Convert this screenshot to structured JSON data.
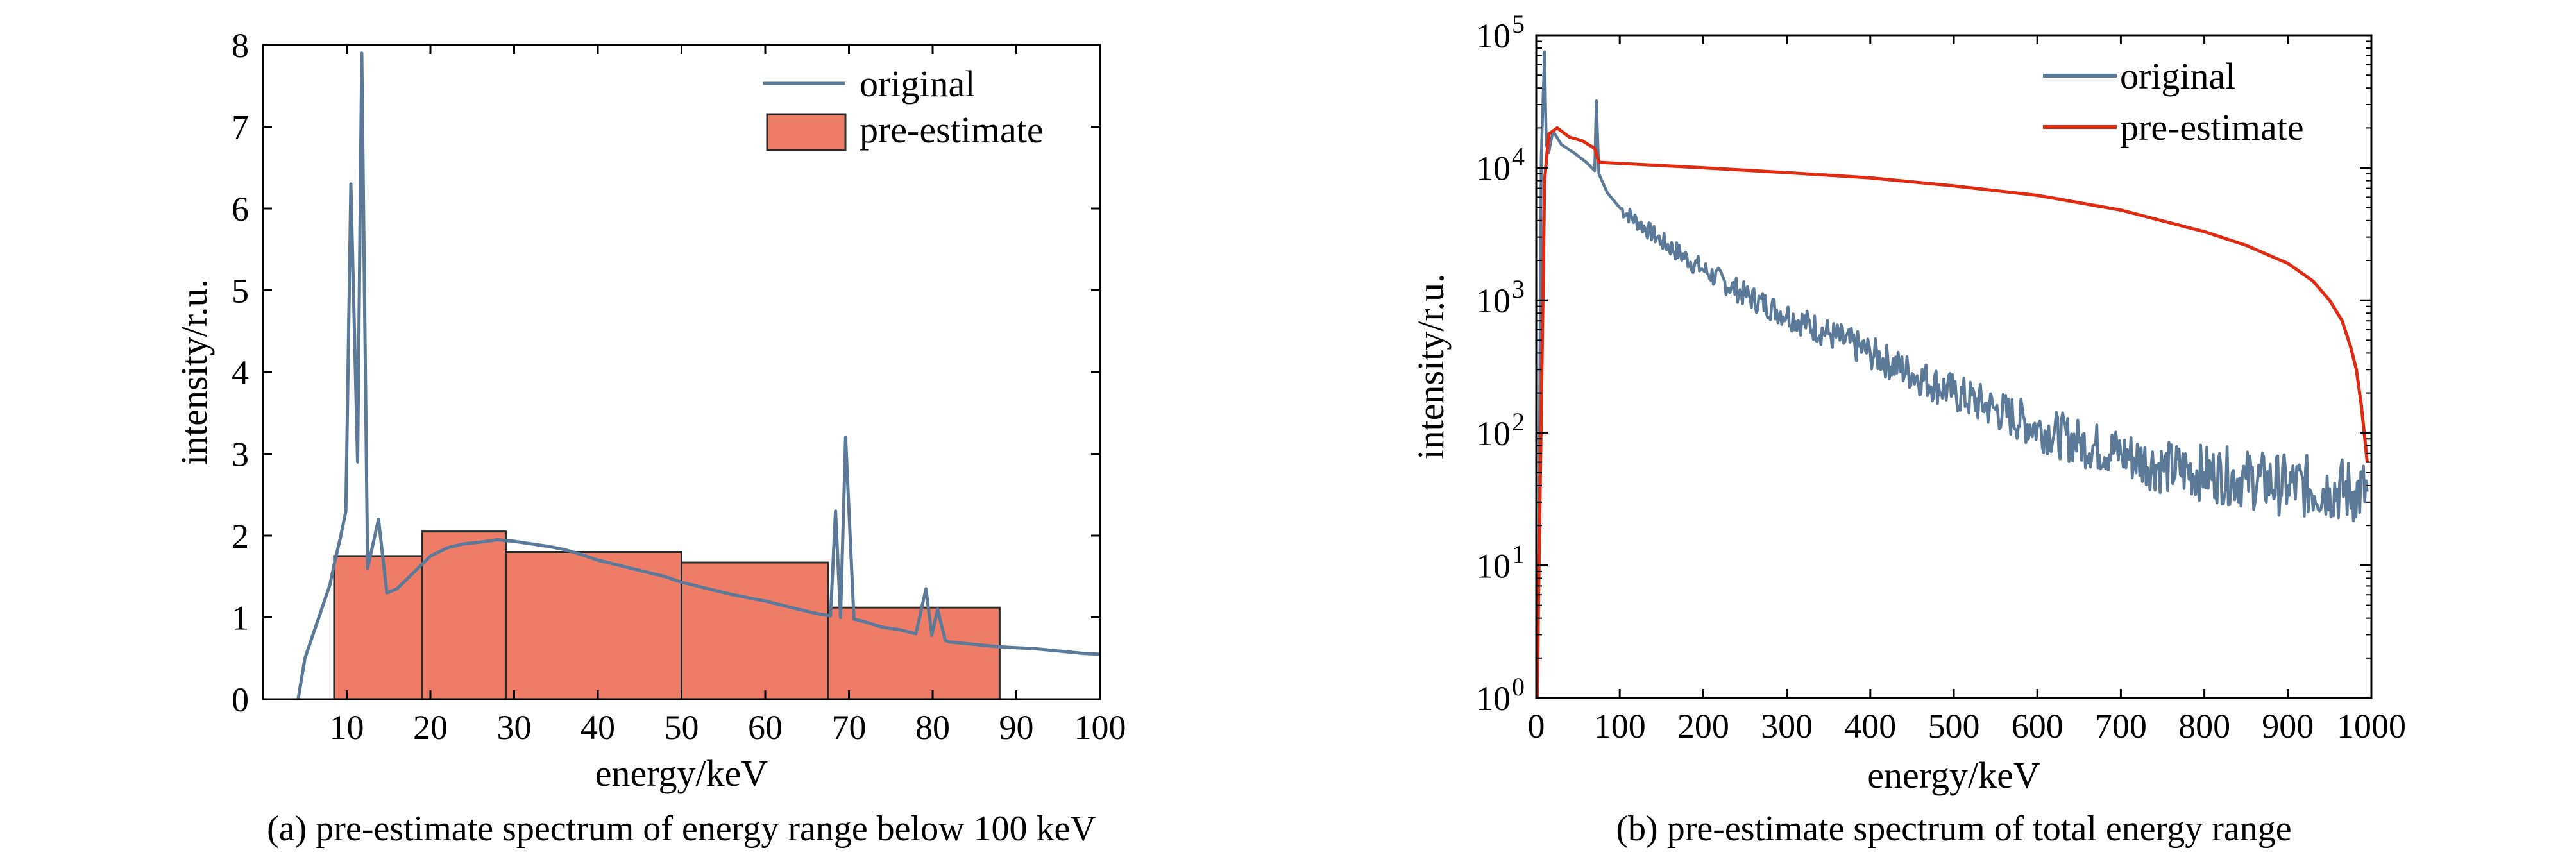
{
  "chart_data": [
    {
      "type": "bar",
      "caption": "(a) pre-estimate spectrum of energy range below 100 keV",
      "xlabel": "energy/keV",
      "ylabel": "intensity/r.u.",
      "xlim": [
        0,
        100
      ],
      "ylim": [
        0,
        8
      ],
      "xticks": [
        10,
        20,
        30,
        40,
        50,
        60,
        70,
        80,
        90,
        100
      ],
      "yticks": [
        0,
        1,
        2,
        3,
        4,
        5,
        6,
        7,
        8
      ],
      "legend_position": "top-right",
      "colors": {
        "original": "#5b7a99",
        "pre_estimate": "#ef7c67",
        "bar_edge": "#2b2b2b"
      },
      "series": [
        {
          "name": "original",
          "kind": "line",
          "x": [
            4.2,
            5.0,
            7.0,
            8.0,
            8.4,
            9.3,
            9.9,
            10.5,
            11.3,
            11.8,
            12.5,
            13.8,
            14.8,
            16.0,
            18,
            20,
            22,
            24,
            26,
            28,
            30,
            32,
            34,
            36,
            38,
            40,
            42,
            44,
            46,
            48,
            50,
            52,
            54,
            56,
            58,
            60,
            62,
            64,
            66,
            67.8,
            68.4,
            69.0,
            69.6,
            70.6,
            71.8,
            74,
            76,
            78,
            79.2,
            79.9,
            80.6,
            81.5,
            82,
            84,
            86,
            88,
            90,
            92,
            94,
            96,
            98,
            100
          ],
          "y": [
            0,
            0.5,
            1.1,
            1.4,
            1.6,
            2.0,
            2.3,
            6.3,
            2.9,
            7.9,
            1.6,
            2.2,
            1.3,
            1.35,
            1.55,
            1.75,
            1.85,
            1.9,
            1.92,
            1.95,
            1.93,
            1.9,
            1.87,
            1.83,
            1.77,
            1.7,
            1.65,
            1.6,
            1.55,
            1.5,
            1.43,
            1.38,
            1.33,
            1.28,
            1.24,
            1.2,
            1.15,
            1.1,
            1.05,
            1.02,
            2.3,
            1.0,
            3.2,
            0.98,
            0.95,
            0.88,
            0.85,
            0.8,
            1.35,
            0.78,
            1.1,
            0.72,
            0.7,
            0.68,
            0.66,
            0.64,
            0.63,
            0.62,
            0.6,
            0.58,
            0.56,
            0.55
          ]
        },
        {
          "name": "pre-estimate",
          "kind": "histogram",
          "bins": [
            {
              "x0": 8.5,
              "x1": 19,
              "value": 1.75
            },
            {
              "x0": 19,
              "x1": 29,
              "value": 2.05
            },
            {
              "x0": 29,
              "x1": 50,
              "value": 1.8
            },
            {
              "x0": 50,
              "x1": 67.5,
              "value": 1.67
            },
            {
              "x0": 67.5,
              "x1": 88,
              "value": 1.12
            }
          ]
        }
      ]
    },
    {
      "type": "line",
      "caption": "(b) pre-estimate spectrum of total energy range",
      "xlabel": "energy/keV",
      "ylabel": "intensity/r.u.",
      "xlim": [
        0,
        1000
      ],
      "yscale": "log",
      "ylim": [
        1,
        100000
      ],
      "xtick_labels": [
        "0",
        "100",
        "200",
        "300",
        "400",
        "500",
        "600",
        "700",
        "800",
        "900",
        "1000"
      ],
      "yticks": [
        {
          "base": "10",
          "exp": "0"
        },
        {
          "base": "10",
          "exp": "1"
        },
        {
          "base": "10",
          "exp": "2"
        },
        {
          "base": "10",
          "exp": "3"
        },
        {
          "base": "10",
          "exp": "4"
        },
        {
          "base": "10",
          "exp": "5"
        }
      ],
      "legend_position": "top-right",
      "colors": {
        "original": "#5b7a99",
        "pre_estimate": "#e02a12"
      },
      "series": [
        {
          "name": "original",
          "x": [
            2,
            6,
            10,
            12,
            15,
            20,
            30,
            45,
            60,
            70,
            72,
            75,
            85,
            100,
            150,
            200,
            250,
            300,
            350,
            400,
            450,
            500,
            550,
            600,
            650,
            700,
            750,
            800,
            850,
            900,
            950,
            980,
            995
          ],
          "y": [
            1,
            12000,
            75000,
            15000,
            13000,
            19000,
            15000,
            13000,
            11000,
            9500,
            32000,
            9000,
            6500,
            5000,
            2800,
            1700,
            1100,
            780,
            560,
            400,
            280,
            200,
            150,
            110,
            85,
            70,
            55,
            50,
            45,
            40,
            38,
            36,
            36
          ]
        },
        {
          "name": "pre-estimate",
          "x": [
            1,
            8,
            10,
            15,
            25,
            40,
            55,
            70,
            75,
            100,
            200,
            300,
            400,
            500,
            600,
            700,
            800,
            850,
            900,
            930,
            950,
            965,
            975,
            982,
            988,
            993,
            995
          ],
          "y": [
            1,
            1000,
            8000,
            18000,
            20000,
            17000,
            16000,
            14000,
            11000,
            10800,
            10000,
            9200,
            8400,
            7300,
            6200,
            4800,
            3300,
            2600,
            1900,
            1400,
            1000,
            700,
            450,
            300,
            160,
            80,
            60
          ]
        }
      ]
    }
  ]
}
